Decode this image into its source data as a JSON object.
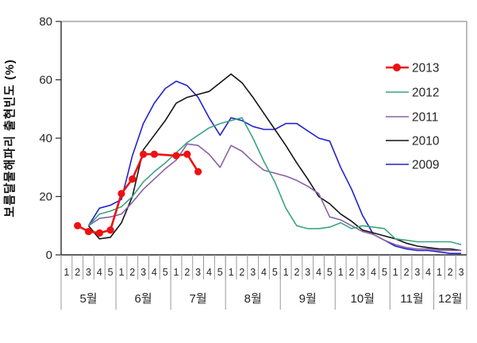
{
  "chart_data": {
    "type": "line",
    "title": "",
    "xlabel": "",
    "ylabel": "보름달물해파리 출현빈도 (%)",
    "ylim": [
      0,
      80
    ],
    "yticks": [
      0,
      20,
      40,
      60,
      80
    ],
    "grid": false,
    "legend_position": "upper right",
    "x_axis": {
      "months": [
        {
          "label": "5월",
          "weeks": [
            "1",
            "2",
            "3",
            "4",
            "5"
          ]
        },
        {
          "label": "6월",
          "weeks": [
            "1",
            "2",
            "3",
            "4",
            "5"
          ]
        },
        {
          "label": "7월",
          "weeks": [
            "1",
            "2",
            "3",
            "4",
            "5"
          ]
        },
        {
          "label": "8월",
          "weeks": [
            "1",
            "2",
            "3",
            "4",
            "5"
          ]
        },
        {
          "label": "9월",
          "weeks": [
            "1",
            "2",
            "3",
            "4",
            "5"
          ]
        },
        {
          "label": "10월",
          "weeks": [
            "1",
            "2",
            "3",
            "4",
            "5"
          ]
        },
        {
          "label": "11월",
          "weeks": [
            "1",
            "2",
            "3",
            "4"
          ]
        },
        {
          "label": "12월",
          "weeks": [
            "1",
            "2",
            "3"
          ]
        }
      ]
    },
    "series": [
      {
        "name": "2013",
        "color": "#ee1111",
        "marker": true,
        "values": [
          null,
          10,
          8,
          7.5,
          8.5,
          21,
          26,
          34.5,
          34.5,
          null,
          34,
          34.5,
          28.5,
          null,
          null,
          null,
          null,
          null,
          null,
          null,
          null,
          null,
          null,
          null,
          null,
          null,
          null,
          null,
          null,
          null,
          null,
          null,
          null,
          null,
          null,
          null,
          null
        ]
      },
      {
        "name": "2012",
        "color": "#3aa57f",
        "marker": false,
        "values": [
          null,
          null,
          10,
          14,
          15,
          16.5,
          20,
          25,
          28.5,
          31.5,
          35,
          38.5,
          41,
          43.5,
          45,
          46,
          47,
          40,
          32,
          25,
          16,
          10,
          9,
          9,
          9.5,
          11,
          9,
          10,
          9.5,
          9,
          5.5,
          5,
          4.5,
          4.5,
          4.5,
          4.5,
          3.5
        ]
      },
      {
        "name": "2011",
        "color": "#8a62a8",
        "marker": false,
        "values": [
          null,
          null,
          10,
          12.5,
          13,
          14,
          18,
          22.5,
          26,
          29.5,
          32.5,
          38,
          37.5,
          34.5,
          30,
          37.5,
          35.5,
          32,
          29,
          28,
          27,
          25.5,
          23.5,
          21,
          13,
          12,
          10,
          8,
          7,
          5,
          3.5,
          2.5,
          2,
          2,
          1.5,
          1.5,
          1.5
        ]
      },
      {
        "name": "2010",
        "color": "#141414",
        "marker": false,
        "values": [
          null,
          null,
          10,
          5.5,
          6,
          11,
          20,
          36,
          41,
          46,
          52,
          54,
          55,
          56,
          59,
          62,
          59,
          54,
          48.5,
          43,
          37.5,
          31.5,
          26,
          20,
          17.5,
          14,
          11.5,
          8.5,
          7.5,
          6.5,
          5.5,
          4,
          3,
          2.5,
          2,
          2,
          1.5
        ]
      },
      {
        "name": "2009",
        "color": "#2222cc",
        "marker": false,
        "values": [
          null,
          null,
          10,
          16,
          17,
          19,
          34,
          45,
          52,
          57,
          59.5,
          58,
          54,
          47,
          41,
          47,
          46,
          44,
          43,
          43,
          45,
          45,
          42.5,
          40,
          39,
          30,
          22.5,
          13.5,
          7,
          5,
          3,
          2,
          1.5,
          1.5,
          1,
          0.5,
          0.5
        ]
      }
    ]
  }
}
